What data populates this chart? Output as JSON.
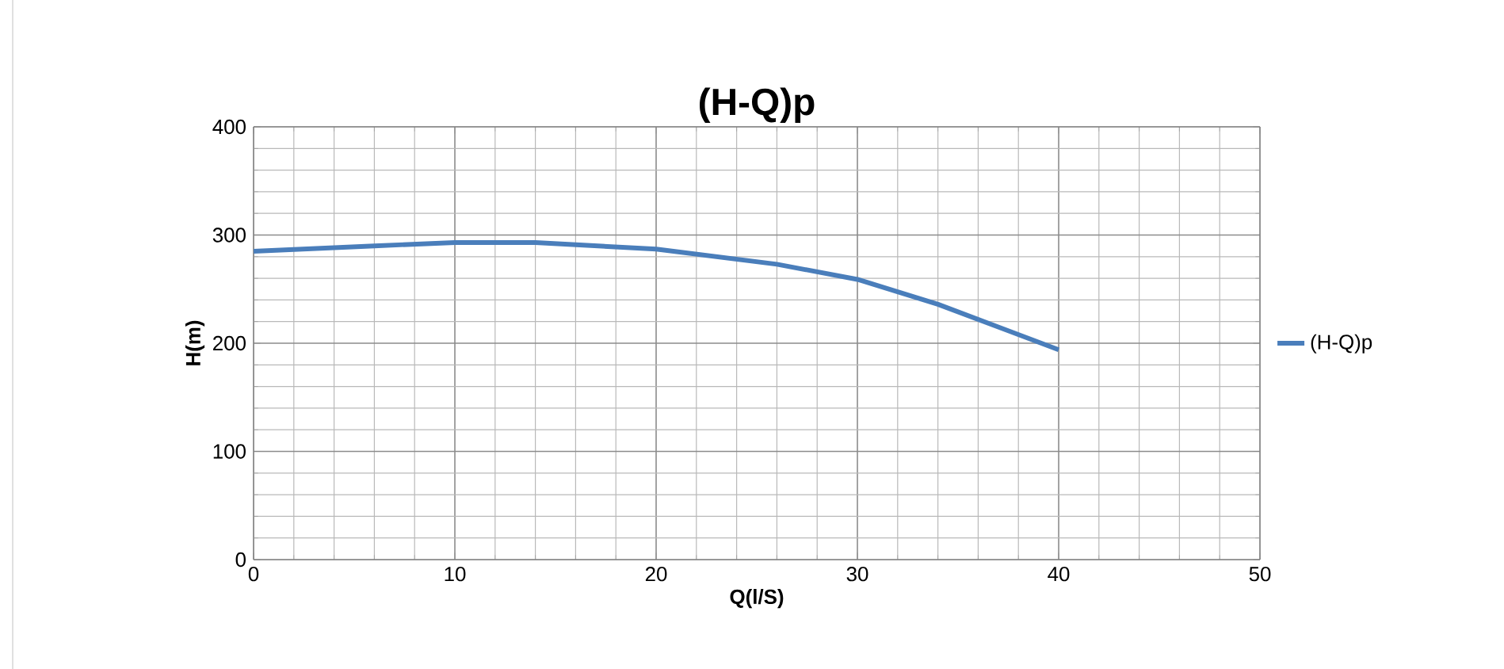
{
  "chart_data": {
    "type": "line",
    "title": "(H-Q)p",
    "xlabel": "Q(l/S)",
    "ylabel": "H(m)",
    "x": [
      0,
      6,
      10,
      14,
      20,
      26,
      30,
      34,
      40
    ],
    "series": [
      {
        "name": "(H-Q)p",
        "color": "#4a7ebb",
        "values": [
          285,
          290,
          293,
          293,
          287,
          273,
          259,
          236,
          194
        ]
      }
    ],
    "xlim": [
      0,
      50
    ],
    "ylim": [
      0,
      400
    ],
    "xticks": [
      0,
      10,
      20,
      30,
      40,
      50
    ],
    "yticks": [
      0,
      100,
      200,
      300,
      400
    ],
    "grid": true,
    "legend": "right",
    "marker": "none",
    "line_style": "solid"
  }
}
